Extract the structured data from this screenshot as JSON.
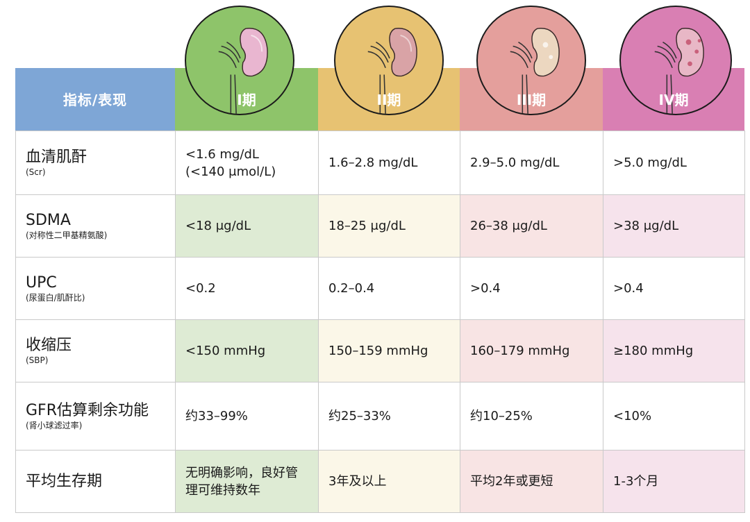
{
  "header": {
    "indicator": "指标/表现",
    "stages": [
      "I期",
      "II期",
      "III期",
      "IV期"
    ]
  },
  "colors": {
    "indicator_header": "#7ea6d6",
    "stage1": "#8ec46a",
    "stage2": "#e7c272",
    "stage3": "#e49f9c",
    "stage4": "#d97fb3"
  },
  "icons": [
    "kidney-stage1-icon",
    "kidney-stage2-icon",
    "kidney-stage3-icon",
    "kidney-stage4-icon"
  ],
  "rows": [
    {
      "label": "血清肌酐",
      "sub": "(Scr)",
      "values": [
        [
          "<1.6 mg/dL",
          "(<140 μmol/L)"
        ],
        [
          "1.6–2.8 mg/dL"
        ],
        [
          "2.9–5.0 mg/dL"
        ],
        [
          ">5.0 mg/dL"
        ]
      ]
    },
    {
      "label": "SDMA",
      "sub": "(对称性二甲基精氨酸)",
      "values": [
        [
          "<18 μg/dL"
        ],
        [
          "18–25 μg/dL"
        ],
        [
          "26–38 μg/dL"
        ],
        [
          ">38 μg/dL"
        ]
      ]
    },
    {
      "label": "UPC",
      "sub": "(尿蛋白/肌酐比)",
      "values": [
        [
          "<0.2"
        ],
        [
          "0.2–0.4"
        ],
        [
          ">0.4"
        ],
        [
          ">0.4"
        ]
      ]
    },
    {
      "label": "收缩压",
      "sub": "(SBP)",
      "values": [
        [
          "<150 mmHg"
        ],
        [
          "150–159 mmHg"
        ],
        [
          "160–179 mmHg"
        ],
        [
          "≥180 mmHg"
        ]
      ]
    },
    {
      "label": "GFR估算剩余功能",
      "sub": "(肾小球滤过率)",
      "values": [
        [
          "约33–99%"
        ],
        [
          "约25–33%"
        ],
        [
          "约10–25%"
        ],
        [
          "<10%"
        ]
      ]
    },
    {
      "label": "平均生存期",
      "sub": "",
      "values": [
        [
          "无明确影响，良好管理可维持数年"
        ],
        [
          "3年及以上"
        ],
        [
          "平均2年或更短"
        ],
        [
          "1-3个月"
        ]
      ]
    }
  ]
}
